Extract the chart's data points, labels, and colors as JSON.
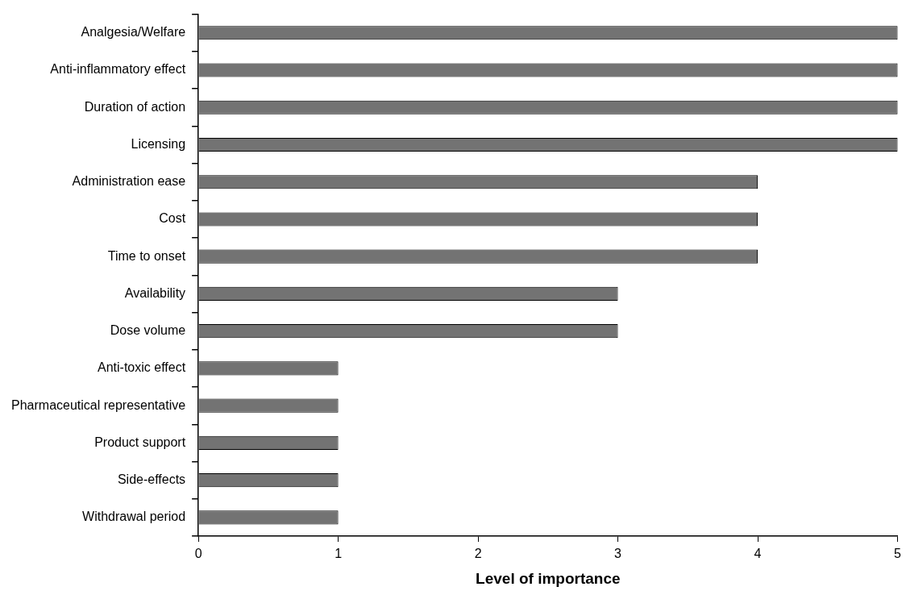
{
  "chart_data": {
    "type": "bar",
    "orientation": "horizontal",
    "categories": [
      "Analgesia/Welfare",
      "Anti-inflammatory effect",
      "Duration of action",
      "Licensing",
      "Administration ease",
      "Cost",
      "Time to onset",
      "Availability",
      "Dose volume",
      "Anti-toxic effect",
      "Pharmaceutical representative",
      "Product support",
      "Side-effects",
      "Withdrawal period"
    ],
    "values": [
      5,
      5,
      5,
      5,
      4,
      4,
      4,
      3,
      3,
      1,
      1,
      1,
      1,
      1
    ],
    "color": "#737373",
    "xlabel": "Level of importance",
    "xlim": [
      0,
      5
    ],
    "xticks": [
      0,
      1,
      2,
      3,
      4,
      5
    ]
  }
}
